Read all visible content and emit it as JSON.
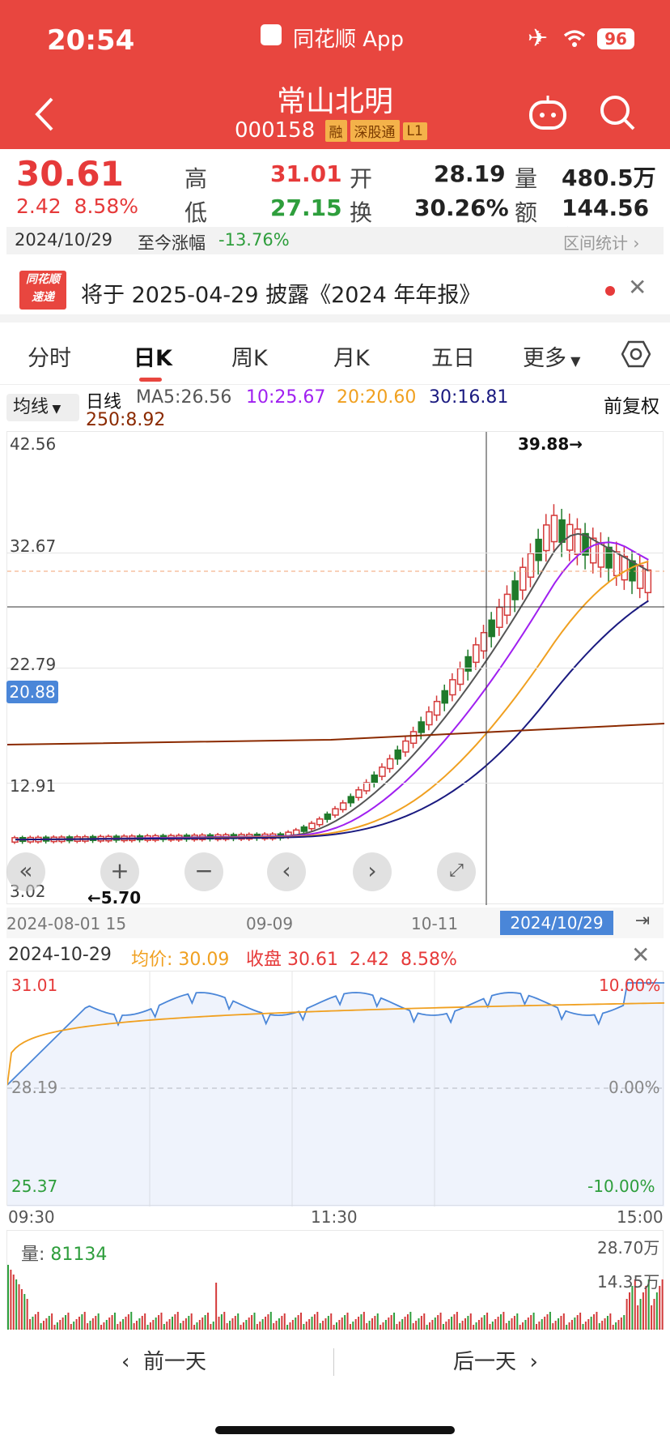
{
  "status": {
    "time": "20:54",
    "app_name": "同花顺 App",
    "battery": "96"
  },
  "stock": {
    "name": "常山北明",
    "code": "000158",
    "tags": [
      "融",
      "深股通",
      "L1"
    ]
  },
  "quote": {
    "price": "30.61",
    "change": "2.42",
    "change_pct": "8.58%",
    "high_label": "高",
    "high": "31.01",
    "low_label": "低",
    "low": "27.15",
    "open_label": "开",
    "open": "28.19",
    "turnover_label": "换",
    "turnover": "30.26%",
    "volume_label": "量",
    "volume": "480.5万",
    "amount_label": "额",
    "amount": "144.56亿"
  },
  "info_row": {
    "date": "2024/10/29",
    "since_label": "至今涨幅",
    "since_value": "-13.76%",
    "stat_link": "区间统计"
  },
  "notice": {
    "logo_top": "同花顺",
    "logo_bottom": "速递",
    "text": "将于 2025-04-29 披露《2024 年年报》"
  },
  "tabs": [
    "分时",
    "日K",
    "周K",
    "月K",
    "五日",
    "更多"
  ],
  "active_tab": "日K",
  "ma_bar": {
    "selector": "均线",
    "period": "日线",
    "ma5": "MA5:26.56",
    "ma10": "10:25.67",
    "ma20": "20:20.60",
    "ma30": "30:16.81",
    "ma250": "250:8.92",
    "adjust": "前复权",
    "colors": {
      "ma5": "#555555",
      "ma10": "#a020f0",
      "ma20": "#f0a020",
      "ma30": "#1a1a80",
      "ma250": "#8b2a00"
    }
  },
  "kline": {
    "y_labels": [
      "42.56",
      "32.67",
      "22.79",
      "12.91",
      "3.02"
    ],
    "cursor_price": "20.88",
    "high_mark": "39.88→",
    "low_mark": "←5.70",
    "x_labels": [
      "2024-08-01",
      "15",
      "09-09",
      "10-11"
    ],
    "cursor_date": "2024/10/29"
  },
  "intraday": {
    "header_date": "2024-10-29",
    "avg_label": "均价:",
    "avg_value": "30.09",
    "close_label": "收盘",
    "close_value": "30.61",
    "chg": "2.42",
    "chg_pct": "8.58%",
    "y_left": [
      "31.01",
      "28.19",
      "25.37"
    ],
    "y_right": [
      "10.00%",
      "0.00%",
      "-10.00%"
    ],
    "x_labels": [
      "09:30",
      "11:30",
      "15:00"
    ]
  },
  "volume": {
    "label": "量:",
    "value": "81134",
    "y_labels": [
      "28.70万",
      "14.35万"
    ]
  },
  "footer": {
    "prev": "前一天",
    "next": "后一天"
  }
}
